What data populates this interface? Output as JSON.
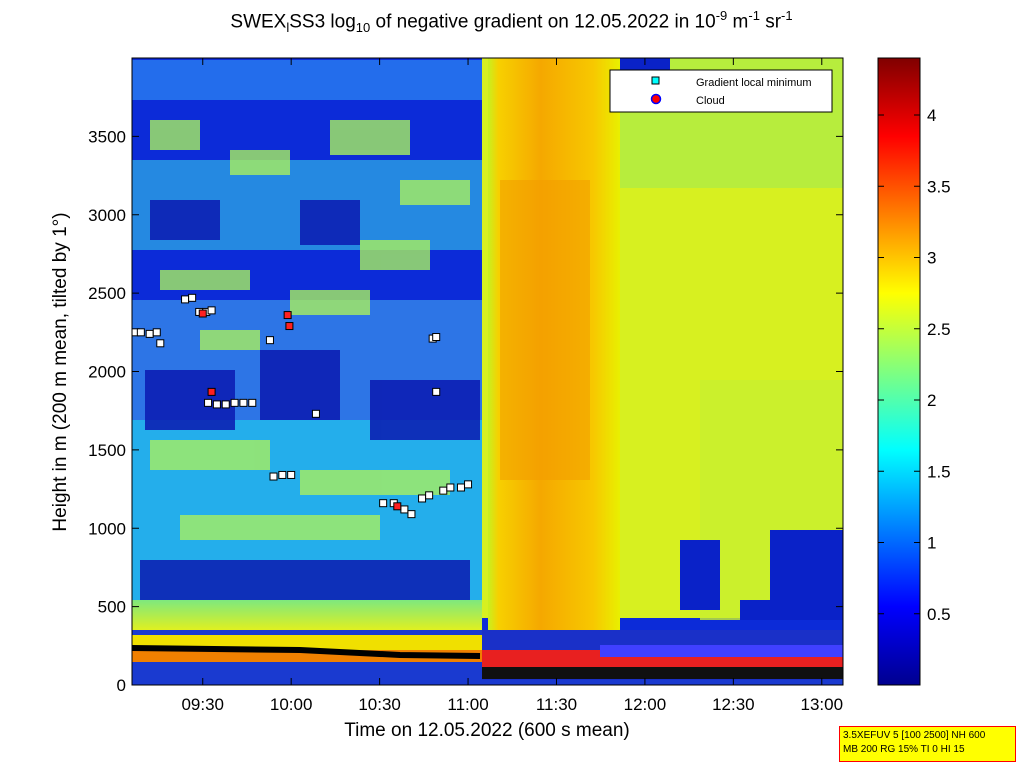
{
  "title": {
    "prefix": "SWEX",
    "sub1": "l",
    "mid": "SS3 log",
    "sub2": "10",
    "rest": " of negative gradient on 12.05.2022 in 10",
    "sup1": "-9",
    "unit1": " m",
    "sup2": "-1",
    "unit2": " sr",
    "sup3": "-1"
  },
  "info_box": {
    "line1": "3.5XEFUV 5 [100 2500] NH 600",
    "line2": "MB 200 RG 15% TI 0 HI 15"
  },
  "chart_data": {
    "type": "heatmap",
    "xlabel": "Time on 12.05.2022 (600 s mean)",
    "ylabel": "Height in m (200 m mean, tilted by 1°)",
    "x_ticks": [
      "09:30",
      "10:00",
      "10:30",
      "11:00",
      "11:30",
      "12:00",
      "12:30",
      "13:00"
    ],
    "x_tick_hours": [
      9.5,
      10.0,
      10.5,
      11.0,
      11.5,
      12.0,
      12.5,
      13.0
    ],
    "xlim_hours": [
      9.1,
      13.12
    ],
    "y_ticks": [
      0,
      500,
      1000,
      1500,
      2000,
      2500,
      3000,
      3500
    ],
    "ylim": [
      0,
      4000
    ],
    "colorbar": {
      "ticks": [
        "0.5",
        "1",
        "1.5",
        "2",
        "2.5",
        "3",
        "3.5",
        "4"
      ],
      "tick_values": [
        0.5,
        1,
        1.5,
        2,
        2.5,
        3,
        3.5,
        4
      ],
      "range": [
        0,
        4.4
      ],
      "colormap": "jet"
    },
    "legend": {
      "placement": "top-right",
      "entries": [
        {
          "label": "Gradient local minimum",
          "marker": "square",
          "color": "#00ffff"
        },
        {
          "label": "Cloud",
          "marker": "circle",
          "color": "#ff0000"
        }
      ]
    },
    "gradient_minima": [
      {
        "t": 9.12,
        "h": 2250
      },
      {
        "t": 9.15,
        "h": 2250
      },
      {
        "t": 9.2,
        "h": 2240
      },
      {
        "t": 9.24,
        "h": 2250
      },
      {
        "t": 9.26,
        "h": 2180
      },
      {
        "t": 9.4,
        "h": 2460
      },
      {
        "t": 9.44,
        "h": 2470
      },
      {
        "t": 9.48,
        "h": 2380
      },
      {
        "t": 9.52,
        "h": 2380
      },
      {
        "t": 9.55,
        "h": 2390
      },
      {
        "t": 9.88,
        "h": 2200
      },
      {
        "t": 9.53,
        "h": 1800
      },
      {
        "t": 9.58,
        "h": 1790
      },
      {
        "t": 9.63,
        "h": 1790
      },
      {
        "t": 9.68,
        "h": 1800
      },
      {
        "t": 9.73,
        "h": 1800
      },
      {
        "t": 9.78,
        "h": 1800
      },
      {
        "t": 10.14,
        "h": 1730
      },
      {
        "t": 9.9,
        "h": 1330
      },
      {
        "t": 9.95,
        "h": 1340
      },
      {
        "t": 10.0,
        "h": 1340
      },
      {
        "t": 10.52,
        "h": 1160
      },
      {
        "t": 10.58,
        "h": 1160
      },
      {
        "t": 10.64,
        "h": 1120
      },
      {
        "t": 10.68,
        "h": 1090
      },
      {
        "t": 10.74,
        "h": 1190
      },
      {
        "t": 10.78,
        "h": 1210
      },
      {
        "t": 10.86,
        "h": 1240
      },
      {
        "t": 10.9,
        "h": 1260
      },
      {
        "t": 10.96,
        "h": 1260
      },
      {
        "t": 11.0,
        "h": 1280
      },
      {
        "t": 10.82,
        "h": 1870
      },
      {
        "t": 10.8,
        "h": 2210
      },
      {
        "t": 10.82,
        "h": 2220
      }
    ],
    "clouds": [
      {
        "t": 9.55,
        "h": 1870
      },
      {
        "t": 9.98,
        "h": 2360
      },
      {
        "t": 9.99,
        "h": 2290
      },
      {
        "t": 9.5,
        "h": 2370
      },
      {
        "t": 10.6,
        "h": 1140
      }
    ]
  }
}
